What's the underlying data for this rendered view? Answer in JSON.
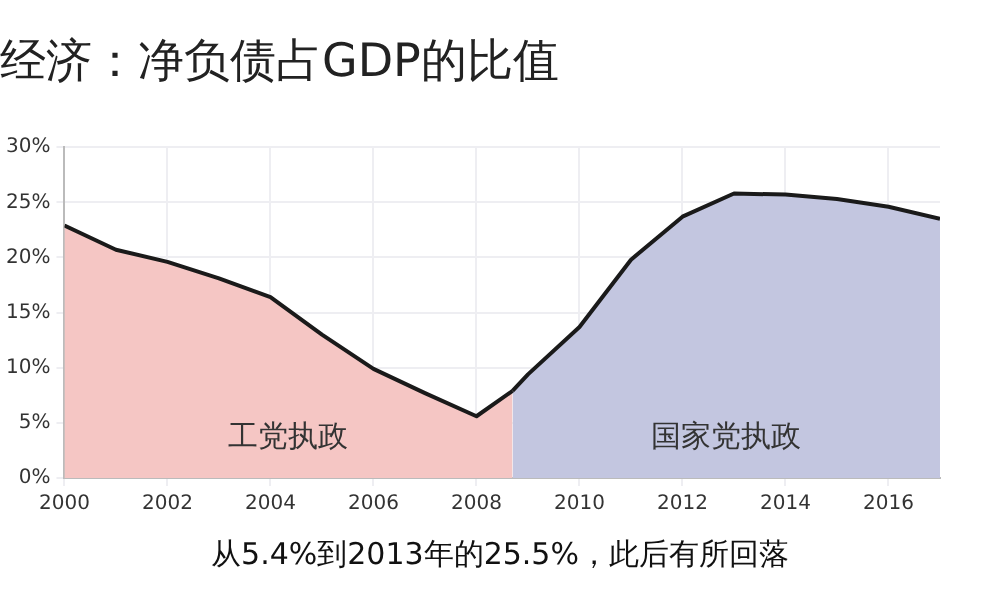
{
  "chart_data": {
    "type": "area",
    "title": "经济：净负债占GDP的比值",
    "series": [
      {
        "name": "工党执政",
        "color": "#f5c6c4",
        "x": [
          2000,
          2001,
          2002,
          2003,
          2004,
          2005,
          2006,
          2007,
          2008,
          2008.7
        ],
        "values": [
          22.9,
          20.7,
          19.6,
          18.1,
          16.4,
          13.0,
          9.9,
          7.7,
          5.6,
          7.9
        ]
      },
      {
        "name": "国家党执政",
        "color": "#c3c6e0",
        "x": [
          2008.7,
          2009,
          2010,
          2011,
          2012,
          2013,
          2014,
          2015,
          2016,
          2017
        ],
        "values": [
          7.9,
          9.4,
          13.7,
          19.8,
          23.7,
          25.8,
          25.7,
          25.3,
          24.6,
          23.5
        ]
      }
    ],
    "xlim": [
      2000,
      2017
    ],
    "xticks": [
      2000,
      2002,
      2004,
      2006,
      2008,
      2010,
      2012,
      2014,
      2016
    ],
    "ylim": [
      0,
      30
    ],
    "yticks": [
      {
        "value": 0,
        "label": "0%"
      },
      {
        "value": 5,
        "label": "5%"
      },
      {
        "value": 10,
        "label": "10%"
      },
      {
        "value": 15,
        "label": "15%"
      },
      {
        "value": 20,
        "label": "20%"
      },
      {
        "value": 25,
        "label": "25%"
      },
      {
        "value": 30,
        "label": "30%"
      }
    ],
    "grid": true,
    "annotations": [
      "从5.4%到2013年的25.5%，此后有所回落"
    ]
  }
}
